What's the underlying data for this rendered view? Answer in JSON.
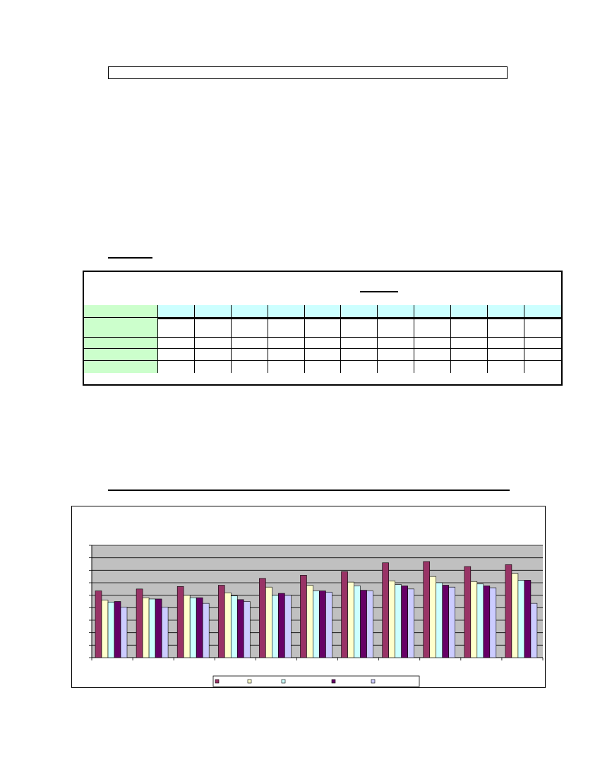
{
  "chart_data": {
    "type": "bar",
    "title": "",
    "xlabel": "",
    "ylabel": "",
    "ylim": [
      0,
      9
    ],
    "grid": true,
    "legend_position": "bottom-center",
    "categories": [
      "",
      "",
      "",
      "",
      "",
      "",
      "",
      "",
      "",
      "",
      ""
    ],
    "series": [
      {
        "color": "#993366",
        "values": [
          5.35,
          5.5,
          5.7,
          5.8,
          6.35,
          6.6,
          6.9,
          7.6,
          7.7,
          7.3,
          7.45
        ]
      },
      {
        "color": "#ffffcc",
        "values": [
          4.6,
          4.8,
          5.0,
          5.2,
          5.65,
          5.8,
          6.05,
          6.15,
          6.5,
          6.1,
          6.75
        ]
      },
      {
        "color": "#ccffff",
        "values": [
          4.45,
          4.7,
          4.8,
          4.95,
          5.0,
          5.35,
          5.75,
          5.85,
          6.0,
          5.9,
          6.2
        ]
      },
      {
        "color": "#660066",
        "values": [
          4.5,
          4.7,
          4.8,
          4.65,
          5.15,
          5.35,
          5.4,
          5.75,
          5.8,
          5.75,
          6.2
        ]
      },
      {
        "color": "#ccccff",
        "values": [
          4.05,
          4.05,
          4.35,
          4.5,
          5.0,
          5.25,
          5.35,
          5.5,
          5.65,
          5.6,
          4.35
        ]
      }
    ]
  }
}
